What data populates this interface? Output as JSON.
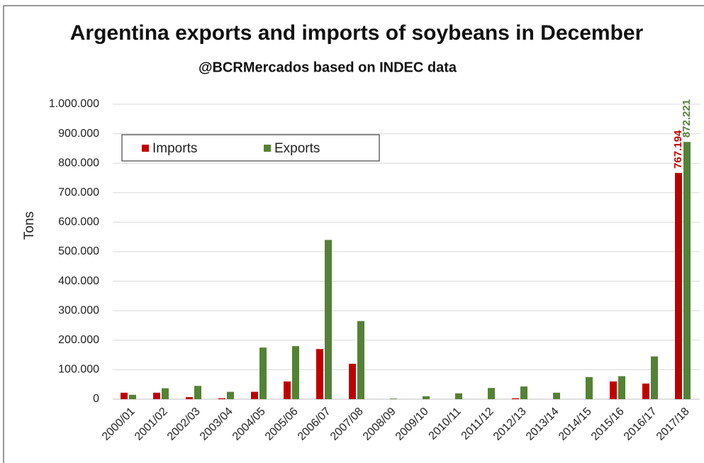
{
  "chart_data": {
    "type": "bar",
    "title": "Argentina exports and imports of soybeans in December",
    "subtitle": "@BCRMercados based on INDEC data",
    "y_axis_label": "Tons",
    "categories": [
      "2000/01",
      "2001/02",
      "2002/03",
      "2003/04",
      "2004/05",
      "2005/06",
      "2006/07",
      "2007/08",
      "2008/09",
      "2009/10",
      "2010/11",
      "2011/12",
      "2012/13",
      "2013/14",
      "2014/15",
      "2015/16",
      "2016/17",
      "2017/18"
    ],
    "series": [
      {
        "name": "Imports",
        "color": "#c00000",
        "values": [
          22000,
          22000,
          7000,
          3000,
          25000,
          60000,
          170000,
          120000,
          0,
          0,
          0,
          0,
          3000,
          0,
          0,
          60000,
          53000,
          767194
        ],
        "value_labels": [
          null,
          null,
          null,
          null,
          null,
          null,
          null,
          null,
          null,
          null,
          null,
          null,
          null,
          null,
          null,
          null,
          null,
          "767.194"
        ]
      },
      {
        "name": "Exports",
        "color": "#548235",
        "values": [
          15000,
          37000,
          45000,
          25000,
          175000,
          180000,
          540000,
          265000,
          2000,
          10000,
          20000,
          38000,
          43000,
          22000,
          75000,
          78000,
          145000,
          872221
        ],
        "value_labels": [
          null,
          null,
          null,
          null,
          null,
          null,
          null,
          null,
          null,
          null,
          null,
          null,
          null,
          null,
          null,
          null,
          null,
          "872.221"
        ]
      }
    ],
    "ylim": [
      0,
      1000000
    ],
    "yticks": [
      0,
      {
        "value": 100000,
        "label": "100.000"
      },
      {
        "value": 200000,
        "label": "200.000"
      },
      {
        "value": 300000,
        "label": "300.000"
      },
      {
        "value": 400000,
        "label": "400.000"
      },
      {
        "value": 500000,
        "label": "500.000"
      },
      {
        "value": 600000,
        "label": "600.000"
      },
      {
        "value": 700000,
        "label": "700.000"
      },
      {
        "value": 800000,
        "label": "800.000"
      },
      {
        "value": 900000,
        "label": "900.000"
      },
      {
        "value": 1000000,
        "label": "1.000.000"
      }
    ],
    "grid": true,
    "legend": "upper left"
  }
}
